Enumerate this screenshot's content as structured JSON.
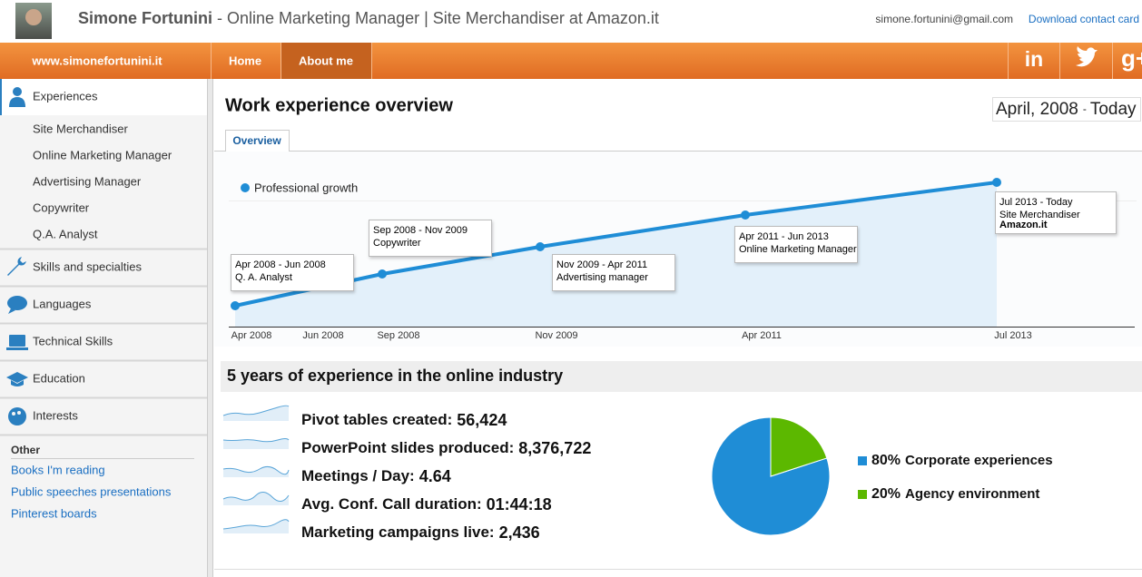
{
  "header": {
    "name": "Simone Fortunini",
    "separator": "-",
    "headline": "Online Marketing Manager | Site Merchandiser at Amazon.it",
    "email": "simone.fortunini@gmail.com",
    "contact_link": "Download contact card"
  },
  "nav": {
    "site": "www.simonefortunini.it",
    "items": [
      "Home",
      "About me"
    ],
    "social": [
      "in",
      "g+"
    ]
  },
  "sidebar": {
    "sections": [
      {
        "label": "Experiences",
        "items": [
          "Site Merchandiser",
          "Online Marketing Manager",
          "Advertising Manager",
          "Copywriter",
          "Q.A. Analyst"
        ]
      },
      {
        "label": "Skills and specialties"
      },
      {
        "label": "Languages"
      },
      {
        "label": "Technical Skills"
      },
      {
        "label": "Education"
      },
      {
        "label": "Interests"
      }
    ],
    "other": {
      "title": "Other",
      "links": [
        "Books I'm reading",
        "Public speeches presentations",
        "Pinterest boards"
      ]
    }
  },
  "main": {
    "title": "Work experience overview",
    "range": {
      "from": "April, 2008",
      "separator": "-",
      "to": "Today"
    },
    "tab": "Overview",
    "section_title": "5 years of experience in the online industry",
    "stats": [
      {
        "label": "Pivot tables created:",
        "value": "56,424"
      },
      {
        "label": "PowerPoint slides produced:",
        "value": "8,376,722"
      },
      {
        "label": "Meetings / Day:",
        "value": "4.64"
      },
      {
        "label": "Avg. Conf. Call duration:",
        "value": "01:44:18"
      },
      {
        "label": "Marketing campaigns live:",
        "value": "2,436"
      }
    ]
  },
  "chart_data": [
    {
      "type": "line",
      "x": [
        "Apr 2008",
        "Sep 2008",
        "Nov 2009",
        "Apr 2011",
        "Jul 2013"
      ],
      "series": [
        {
          "name": "Professional growth",
          "color": "#1f8dd6",
          "values": [
            23,
            58,
            88,
            123,
            159
          ]
        }
      ],
      "xlim": [
        "Apr 2008",
        "Jul 2013"
      ],
      "xticks": [
        "Apr 2008",
        "Jun 2008",
        "Sep 2008",
        "Nov 2009",
        "Apr 2011",
        "Jul 2013"
      ],
      "ylim": [
        0,
        200
      ],
      "annotations": [
        {
          "period": "Apr 2008 - Jun 2008",
          "role": "Q. A. Analyst"
        },
        {
          "period": "Sep 2008 - Nov 2009",
          "role": "Copywriter"
        },
        {
          "period": "Nov 2009 - Apr 2011",
          "role": "Advertising manager"
        },
        {
          "period": "Apr 2011 - Jun 2013",
          "role": "Online Marketing Manager"
        },
        {
          "period": "Jul 2013 - Today",
          "role": "Site Merchandiser",
          "company": "Amazon.it"
        }
      ]
    },
    {
      "type": "pie",
      "categories": [
        "Corporate experiences",
        "Agency environment"
      ],
      "values": [
        80,
        20
      ],
      "value_labels": [
        "80%",
        "20%"
      ],
      "colors": [
        "#1f8dd6",
        "#5cb800"
      ]
    }
  ]
}
